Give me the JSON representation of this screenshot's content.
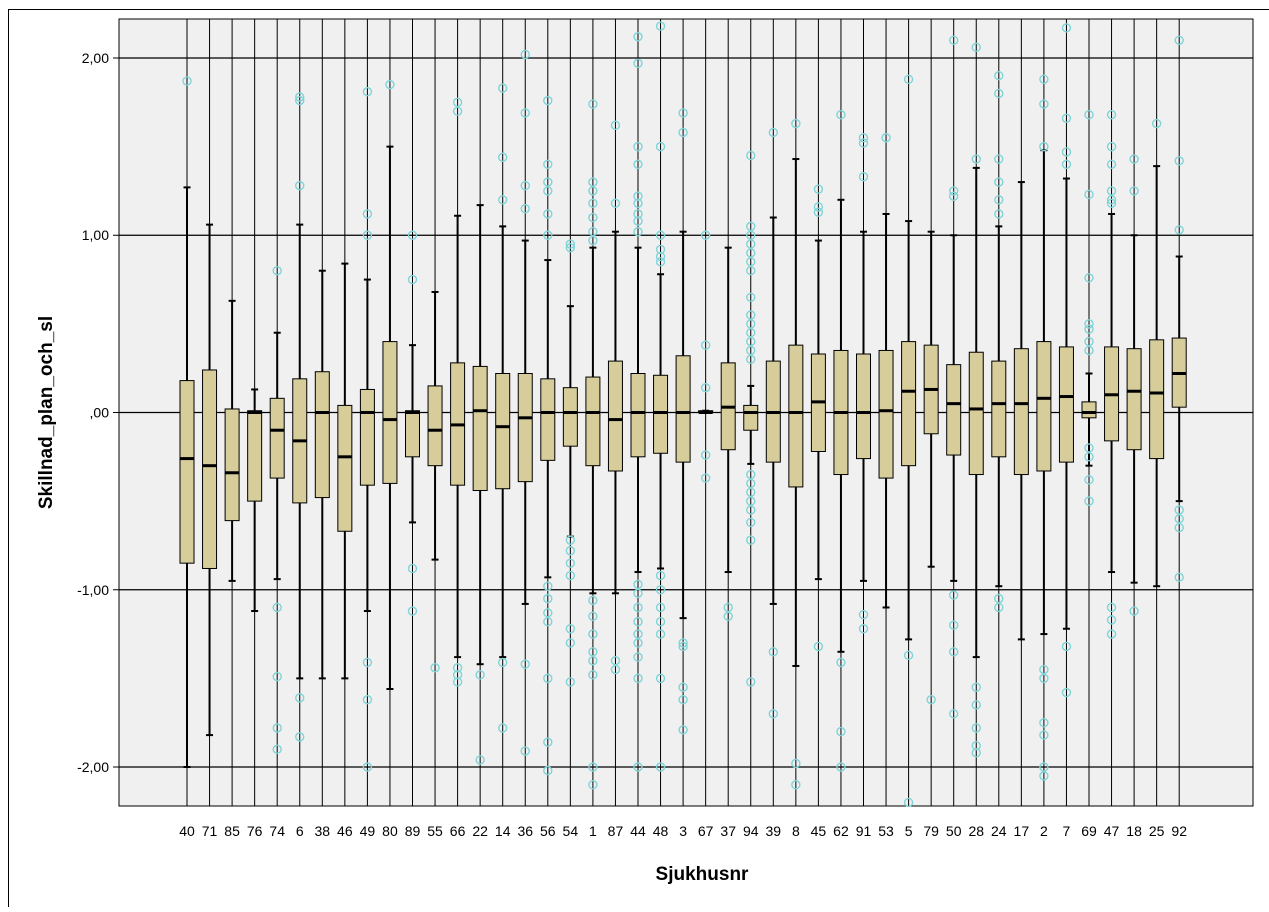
{
  "chart_data": {
    "type": "boxplot",
    "xlabel": "Sjukhusnr",
    "ylabel": "Skillnad_plan_och_sl",
    "ylim": [
      -2.22,
      2.22
    ],
    "yticks": [
      2,
      1,
      0,
      -1,
      -2
    ],
    "ytick_labels": [
      "2,00",
      "1,00",
      ",00",
      "-1,00",
      "-2,00"
    ],
    "grid": "horizontal",
    "colors": {
      "plot_bg": "#f0f0f0",
      "box_fill": "#d6cd9b",
      "box_stroke": "#000000",
      "outlier": "#7fd4d8",
      "grid": "#000000"
    },
    "categories": [
      "40",
      "71",
      "85",
      "76",
      "74",
      "6",
      "38",
      "46",
      "49",
      "80",
      "89",
      "55",
      "66",
      "22",
      "14",
      "36",
      "56",
      "54",
      "1",
      "87",
      "44",
      "48",
      "3",
      "67",
      "37",
      "94",
      "39",
      "8",
      "45",
      "62",
      "91",
      "53",
      "5",
      "79",
      "50",
      "28",
      "24",
      "17",
      "2",
      "7",
      "69",
      "47",
      "18",
      "25",
      "92"
    ],
    "boxes": [
      {
        "q1": -0.85,
        "median": -0.26,
        "q3": 0.18,
        "wlo": -2.0,
        "whi": 1.27,
        "outliers": [
          1.87
        ]
      },
      {
        "q1": -0.88,
        "median": -0.3,
        "q3": 0.24,
        "wlo": -1.82,
        "whi": 1.06,
        "outliers": []
      },
      {
        "q1": -0.61,
        "median": -0.34,
        "q3": 0.02,
        "wlo": -0.95,
        "whi": 0.63,
        "outliers": []
      },
      {
        "q1": -0.5,
        "median": 0.0,
        "q3": 0.01,
        "wlo": -1.12,
        "whi": 0.13,
        "outliers": []
      },
      {
        "q1": -0.37,
        "median": -0.1,
        "q3": 0.08,
        "wlo": -0.94,
        "whi": 0.45,
        "outliers": [
          0.8,
          -1.1,
          -1.49,
          -1.78,
          -1.9
        ]
      },
      {
        "q1": -0.51,
        "median": -0.16,
        "q3": 0.19,
        "wlo": -1.5,
        "whi": 1.06,
        "outliers": [
          1.78,
          1.76,
          1.28,
          -1.61,
          -1.83
        ]
      },
      {
        "q1": -0.48,
        "median": 0.0,
        "q3": 0.23,
        "wlo": -1.5,
        "whi": 0.8,
        "outliers": []
      },
      {
        "q1": -0.67,
        "median": -0.25,
        "q3": 0.04,
        "wlo": -1.5,
        "whi": 0.84,
        "outliers": []
      },
      {
        "q1": -0.41,
        "median": 0.0,
        "q3": 0.13,
        "wlo": -1.12,
        "whi": 0.75,
        "outliers": [
          1.81,
          1.12,
          1.0,
          -1.41,
          -1.62,
          -2.0
        ]
      },
      {
        "q1": -0.4,
        "median": -0.04,
        "q3": 0.4,
        "wlo": -1.56,
        "whi": 1.5,
        "outliers": [
          1.85
        ]
      },
      {
        "q1": -0.25,
        "median": 0.0,
        "q3": 0.01,
        "wlo": -0.62,
        "whi": 0.38,
        "outliers": [
          1.0,
          0.75,
          -0.88,
          -1.12
        ]
      },
      {
        "q1": -0.3,
        "median": -0.1,
        "q3": 0.15,
        "wlo": -0.83,
        "whi": 0.68,
        "outliers": [
          -1.44
        ]
      },
      {
        "q1": -0.41,
        "median": -0.07,
        "q3": 0.28,
        "wlo": -1.38,
        "whi": 1.11,
        "outliers": [
          1.75,
          1.7,
          -1.44,
          -1.48,
          -1.52
        ]
      },
      {
        "q1": -0.44,
        "median": 0.01,
        "q3": 0.26,
        "wlo": -1.42,
        "whi": 1.17,
        "outliers": [
          -1.48,
          -1.96
        ]
      },
      {
        "q1": -0.43,
        "median": -0.08,
        "q3": 0.22,
        "wlo": -1.38,
        "whi": 1.05,
        "outliers": [
          1.83,
          1.44,
          1.2,
          -1.41,
          -1.78
        ]
      },
      {
        "q1": -0.39,
        "median": -0.03,
        "q3": 0.22,
        "wlo": -1.08,
        "whi": 0.97,
        "outliers": [
          2.02,
          1.69,
          1.28,
          1.15,
          -1.42,
          -1.91
        ]
      },
      {
        "q1": -0.27,
        "median": 0.0,
        "q3": 0.19,
        "wlo": -0.93,
        "whi": 0.86,
        "outliers": [
          1.76,
          1.4,
          1.3,
          1.25,
          1.12,
          1.0,
          -0.98,
          -1.05,
          -1.13,
          -1.18,
          -1.5,
          -1.86,
          -2.02
        ]
      },
      {
        "q1": -0.19,
        "median": 0.0,
        "q3": 0.14,
        "wlo": -0.7,
        "whi": 0.6,
        "outliers": [
          0.95,
          0.93,
          -0.72,
          -0.78,
          -0.85,
          -0.92,
          -1.22,
          -1.3,
          -1.52
        ]
      },
      {
        "q1": -0.3,
        "median": 0.0,
        "q3": 0.2,
        "wlo": -1.02,
        "whi": 0.93,
        "outliers": [
          1.74,
          1.3,
          1.25,
          1.18,
          1.1,
          1.02,
          0.97,
          -1.06,
          -1.15,
          -1.25,
          -1.35,
          -1.4,
          -1.48,
          -2.0,
          -2.1
        ]
      },
      {
        "q1": -0.33,
        "median": -0.04,
        "q3": 0.29,
        "wlo": -1.02,
        "whi": 1.02,
        "outliers": [
          1.62,
          1.18,
          -1.4,
          -1.45
        ]
      },
      {
        "q1": -0.25,
        "median": 0.0,
        "q3": 0.22,
        "wlo": -0.9,
        "whi": 0.93,
        "outliers": [
          2.12,
          1.97,
          1.5,
          1.4,
          1.22,
          1.18,
          1.12,
          1.08,
          1.02,
          -0.97,
          -1.02,
          -1.1,
          -1.18,
          -1.25,
          -1.3,
          -1.38,
          -1.5,
          -2.0
        ]
      },
      {
        "q1": -0.23,
        "median": 0.0,
        "q3": 0.21,
        "wlo": -0.88,
        "whi": 0.78,
        "outliers": [
          2.18,
          1.5,
          1.0,
          0.92,
          0.88,
          0.85,
          -0.92,
          -1.0,
          -1.1,
          -1.18,
          -1.25,
          -1.5,
          -2.0
        ]
      },
      {
        "q1": -0.28,
        "median": 0.0,
        "q3": 0.32,
        "wlo": -1.16,
        "whi": 1.02,
        "outliers": [
          1.69,
          1.58,
          -1.3,
          -1.32,
          -1.55,
          -1.62,
          -1.79
        ]
      },
      {
        "q1": 0.0,
        "median": 0.0,
        "q3": 0.01,
        "wlo": 0.0,
        "whi": 0.01,
        "outliers": [
          1.0,
          0.38,
          0.14,
          -0.24,
          -0.37
        ]
      },
      {
        "q1": -0.21,
        "median": 0.03,
        "q3": 0.28,
        "wlo": -0.9,
        "whi": 0.93,
        "outliers": [
          -1.1,
          -1.15
        ]
      },
      {
        "q1": -0.1,
        "median": 0.0,
        "q3": 0.04,
        "wlo": -0.29,
        "whi": 0.15,
        "outliers": [
          1.45,
          1.05,
          1.0,
          0.95,
          0.9,
          0.85,
          0.8,
          0.65,
          0.55,
          0.5,
          0.45,
          0.4,
          0.35,
          0.3,
          -0.35,
          -0.4,
          -0.45,
          -0.5,
          -0.55,
          -0.62,
          -0.72,
          -1.52
        ]
      },
      {
        "q1": -0.28,
        "median": 0.0,
        "q3": 0.29,
        "wlo": -1.08,
        "whi": 1.1,
        "outliers": [
          1.58,
          -1.35,
          -1.7
        ]
      },
      {
        "q1": -0.42,
        "median": 0.0,
        "q3": 0.38,
        "wlo": -1.43,
        "whi": 1.43,
        "outliers": [
          1.63,
          -1.98,
          -2.1
        ]
      },
      {
        "q1": -0.22,
        "median": 0.06,
        "q3": 0.33,
        "wlo": -0.94,
        "whi": 0.97,
        "outliers": [
          1.26,
          1.16,
          1.13,
          -1.32
        ]
      },
      {
        "q1": -0.35,
        "median": 0.0,
        "q3": 0.35,
        "wlo": -1.35,
        "whi": 1.2,
        "outliers": [
          1.68,
          -1.41,
          -1.8,
          -2.0
        ]
      },
      {
        "q1": -0.26,
        "median": 0.0,
        "q3": 0.33,
        "wlo": -0.95,
        "whi": 1.02,
        "outliers": [
          1.55,
          1.52,
          1.33,
          -1.14,
          -1.22
        ]
      },
      {
        "q1": -0.37,
        "median": 0.01,
        "q3": 0.35,
        "wlo": -1.1,
        "whi": 1.12,
        "outliers": [
          1.55
        ]
      },
      {
        "q1": -0.3,
        "median": 0.12,
        "q3": 0.4,
        "wlo": -1.28,
        "whi": 1.08,
        "outliers": [
          1.88,
          -1.37,
          -2.2
        ]
      },
      {
        "q1": -0.12,
        "median": 0.13,
        "q3": 0.38,
        "wlo": -0.87,
        "whi": 1.02,
        "outliers": [
          -1.62
        ]
      },
      {
        "q1": -0.24,
        "median": 0.05,
        "q3": 0.27,
        "wlo": -0.95,
        "whi": 1.0,
        "outliers": [
          2.1,
          1.25,
          1.22,
          -1.03,
          -1.2,
          -1.35,
          -1.7
        ]
      },
      {
        "q1": -0.35,
        "median": 0.02,
        "q3": 0.34,
        "wlo": -1.38,
        "whi": 1.38,
        "outliers": [
          2.06,
          1.43,
          -1.55,
          -1.65,
          -1.78,
          -1.88,
          -1.92
        ]
      },
      {
        "q1": -0.25,
        "median": 0.05,
        "q3": 0.29,
        "wlo": -0.98,
        "whi": 1.05,
        "outliers": [
          1.9,
          1.8,
          1.43,
          1.3,
          1.2,
          1.12,
          -1.05,
          -1.1
        ]
      },
      {
        "q1": -0.35,
        "median": 0.05,
        "q3": 0.36,
        "wlo": -1.28,
        "whi": 1.3,
        "outliers": []
      },
      {
        "q1": -0.33,
        "median": 0.08,
        "q3": 0.4,
        "wlo": -1.25,
        "whi": 1.48,
        "outliers": [
          1.88,
          1.74,
          1.5,
          -1.45,
          -1.5,
          -1.75,
          -1.82,
          -2.0,
          -2.05
        ]
      },
      {
        "q1": -0.28,
        "median": 0.09,
        "q3": 0.37,
        "wlo": -1.22,
        "whi": 1.32,
        "outliers": [
          2.17,
          1.66,
          1.47,
          1.4,
          -1.32,
          -1.58
        ]
      },
      {
        "q1": -0.03,
        "median": 0.0,
        "q3": 0.06,
        "wlo": -0.3,
        "whi": 0.22,
        "outliers": [
          1.68,
          1.23,
          0.76,
          0.5,
          0.47,
          0.4,
          0.35,
          -0.2,
          -0.25,
          -0.38,
          -0.5
        ]
      },
      {
        "q1": -0.16,
        "median": 0.1,
        "q3": 0.37,
        "wlo": -0.9,
        "whi": 1.12,
        "outliers": [
          1.68,
          1.5,
          1.4,
          1.25,
          1.2,
          1.18,
          -1.1,
          -1.17,
          -1.25
        ]
      },
      {
        "q1": -0.21,
        "median": 0.12,
        "q3": 0.36,
        "wlo": -0.96,
        "whi": 1.0,
        "outliers": [
          1.43,
          1.25,
          -1.12
        ]
      },
      {
        "q1": -0.26,
        "median": 0.11,
        "q3": 0.41,
        "wlo": -0.98,
        "whi": 1.39,
        "outliers": [
          1.63
        ]
      },
      {
        "q1": 0.03,
        "median": 0.22,
        "q3": 0.42,
        "wlo": -0.5,
        "whi": 0.88,
        "outliers": [
          2.1,
          1.42,
          1.03,
          -0.55,
          -0.6,
          -0.65,
          -0.93
        ]
      }
    ]
  }
}
